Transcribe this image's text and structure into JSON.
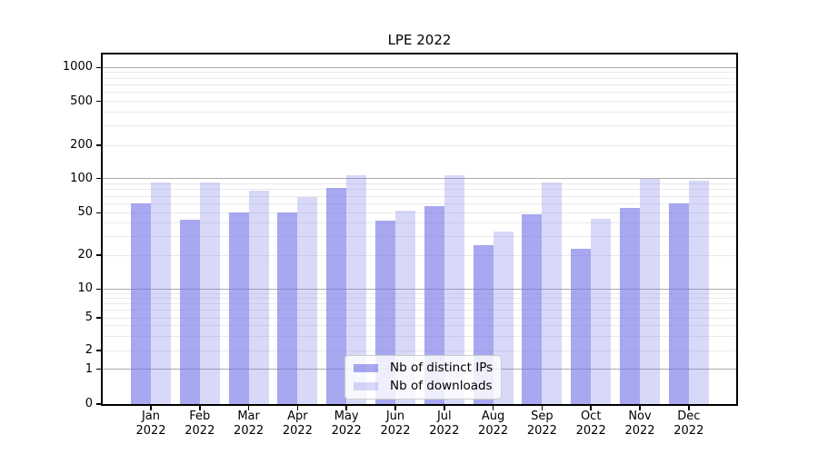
{
  "title": "LPE 2022",
  "chart_data": {
    "type": "bar",
    "title": "LPE 2022",
    "categories": [
      "Jan",
      "Feb",
      "Mar",
      "Apr",
      "May",
      "Jun",
      "Jul",
      "Aug",
      "Sep",
      "Oct",
      "Nov",
      "Dec"
    ],
    "year": "2022",
    "series": [
      {
        "name": "Nb of distinct IPs",
        "color": "rgba(115,115,231,0.62)",
        "values": [
          61,
          43,
          50,
          50,
          82,
          42,
          57,
          25,
          48,
          23,
          55,
          60
        ]
      },
      {
        "name": "Nb of downloads",
        "color": "rgba(115,115,231,0.28)",
        "values": [
          92,
          92,
          78,
          69,
          107,
          52,
          107,
          33,
          93,
          44,
          100,
          96
        ]
      }
    ],
    "yscale": "symlog",
    "ytick_labels": [
      "0",
      "1",
      "2",
      "5",
      "10",
      "20",
      "50",
      "100",
      "200",
      "500",
      "1000"
    ],
    "ytick_values": [
      0,
      1,
      2,
      5,
      10,
      20,
      50,
      100,
      200,
      500,
      1000
    ],
    "ylim": [
      0,
      1300
    ],
    "xlabel": "",
    "ylabel": "",
    "grid": true,
    "legend_position": "lower center"
  },
  "colors": {
    "bar_base": "#7373e7",
    "major_grid": "#ababab",
    "minor_grid": "#eaeaea",
    "axis": "#000000",
    "background": "#ffffff"
  }
}
